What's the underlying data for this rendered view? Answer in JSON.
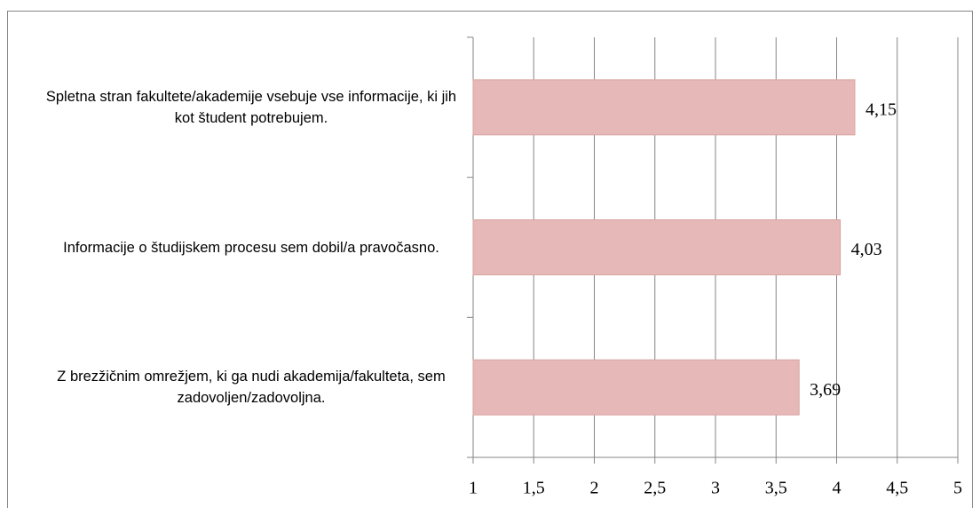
{
  "chart_data": {
    "type": "bar",
    "orientation": "horizontal",
    "categories": [
      "Spletna stran fakultete/akademije vsebuje vse informacije, ki jih kot študent potrebujem.",
      "Informacije o študijskem procesu sem dobil/a pravočasno.",
      "Z brezžičnim omrežjem, ki ga nudi akademija/fakulteta, sem zadovoljen/zadovoljna."
    ],
    "values": [
      4.15,
      4.03,
      3.69
    ],
    "value_labels": [
      "4,15",
      "4,03",
      "3,69"
    ],
    "color": "#e6b8b7",
    "xlim": [
      1,
      5
    ],
    "xticks": [
      1,
      {
        "value": 1.5,
        "label": "1,5"
      },
      2,
      {
        "value": 2.5,
        "label": "2,5"
      },
      3,
      {
        "value": 3.5,
        "label": "3,5"
      },
      4,
      {
        "value": 4.5,
        "label": "4,5"
      },
      5
    ],
    "grid": true
  }
}
